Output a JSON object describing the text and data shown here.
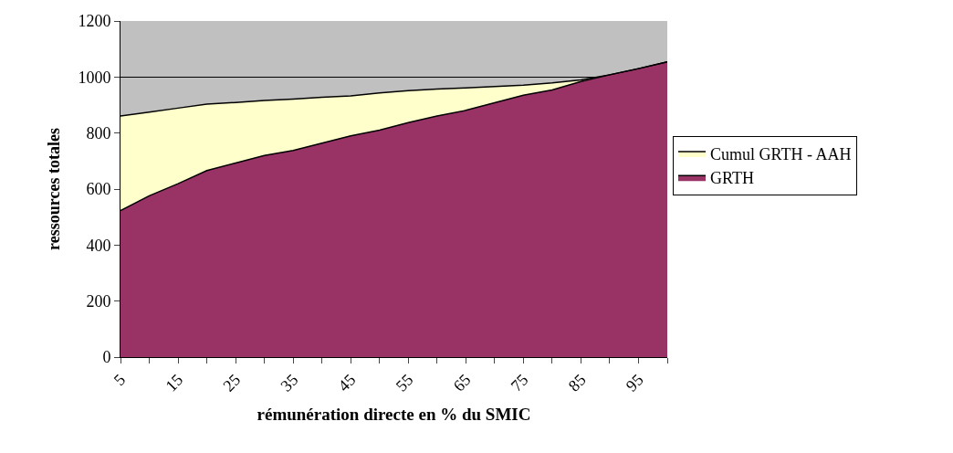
{
  "chart_data": {
    "type": "area",
    "xlabel": "rémunération directe en % du SMIC",
    "ylabel": "ressources totales",
    "categories": [
      "5",
      null,
      "15",
      null,
      "25",
      null,
      "35",
      null,
      "45",
      null,
      "55",
      null,
      "65",
      null,
      "75",
      null,
      "85",
      null,
      "95",
      null
    ],
    "series": [
      {
        "name": "Cumul GRTH - AAH",
        "color": "#ffffcc",
        "values": [
          861,
          875,
          889,
          903,
          909,
          916,
          921,
          928,
          933,
          943,
          951,
          957,
          961,
          966,
          971,
          979,
          990,
          1008,
          1030,
          1054
        ]
      },
      {
        "name": "GRTH",
        "color": "#993366",
        "values": [
          523,
          576,
          619,
          666,
          693,
          720,
          738,
          764,
          790,
          810,
          837,
          861,
          881,
          908,
          935,
          954,
          984,
          1008,
          1030,
          1054
        ]
      }
    ],
    "ylim": [
      0,
      1200
    ],
    "yticks": [
      0,
      200,
      400,
      600,
      800,
      1000,
      1200
    ],
    "grid": "y",
    "legend": "right"
  }
}
